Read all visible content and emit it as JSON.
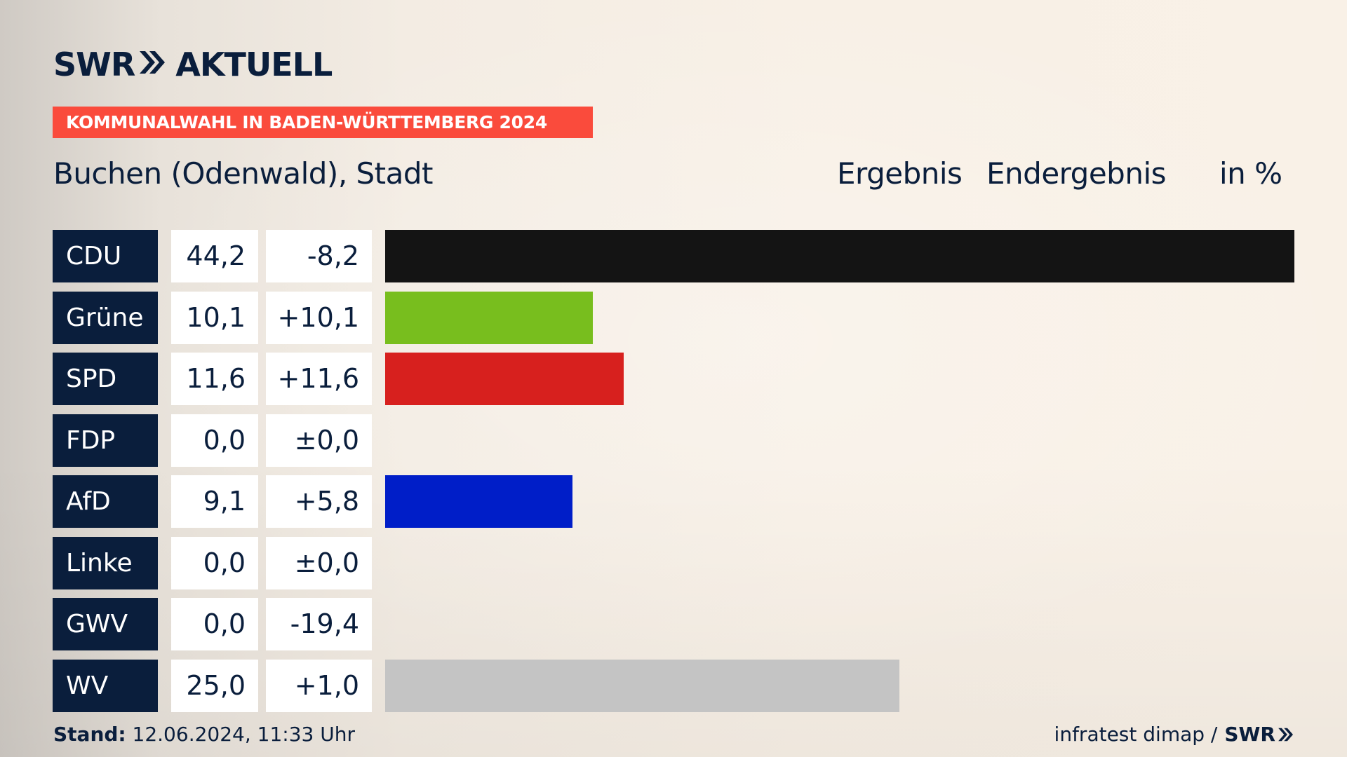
{
  "brand": {
    "logo_prefix": "SWR",
    "logo_suffix": "AKTUELL"
  },
  "banner": "KOMMUNALWAHL IN BADEN-WÜRTTEMBERG 2024",
  "location": "Buchen (Odenwald), Stadt",
  "header": {
    "result": "Ergebnis",
    "final": "Endergebnis",
    "unit": "in %"
  },
  "chart_data": {
    "type": "bar",
    "orientation": "horizontal",
    "xlim": [
      0,
      44.2
    ],
    "categories": [
      "CDU",
      "Grüne",
      "SPD",
      "FDP",
      "AfD",
      "Linke",
      "GWV",
      "WV"
    ],
    "values": [
      44.2,
      10.1,
      11.6,
      0.0,
      9.1,
      0.0,
      0.0,
      25.0
    ],
    "value_labels": [
      "44,2",
      "10,1",
      "11,6",
      "0,0",
      "9,1",
      "0,0",
      "0,0",
      "25,0"
    ],
    "diff_labels": [
      "-8,2",
      "+10,1",
      "+11,6",
      "±0,0",
      "+5,8",
      "±0,0",
      "-19,4",
      "+1,0"
    ],
    "colors": [
      "#141414",
      "#78be1e",
      "#d7201e",
      "#ffd700",
      "#001ec8",
      "#be3075",
      "#a0a0a0",
      "#c4c4c4"
    ]
  },
  "footer": {
    "stand_label": "Stand:",
    "stand_value": "12.06.2024, 11:33 Uhr",
    "source": "infratest dimap /",
    "source_brand": "SWR"
  }
}
